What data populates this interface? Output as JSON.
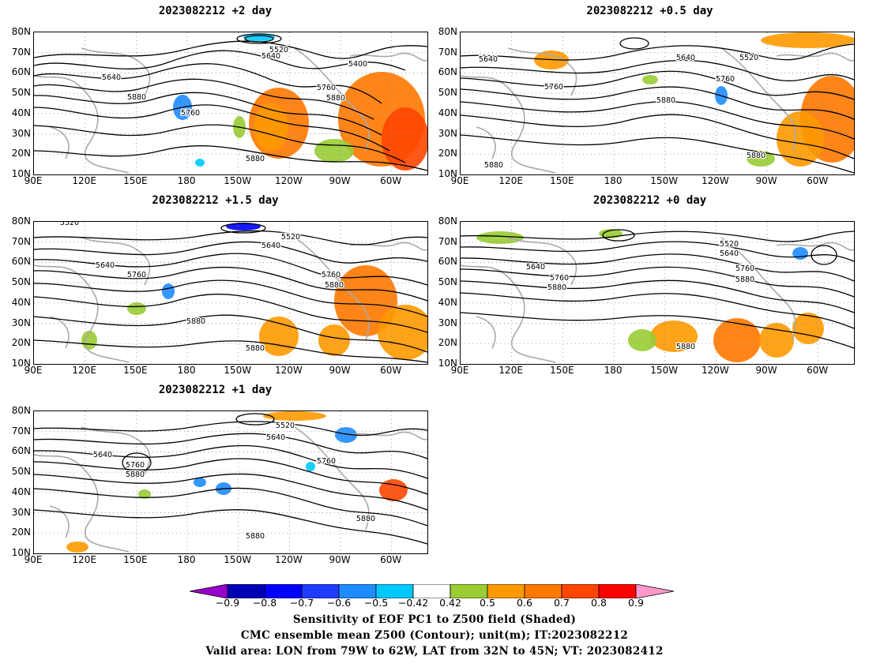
{
  "panels": [
    {
      "id": "p2",
      "title": "2023082212  +2 day"
    },
    {
      "id": "p05",
      "title": "2023082212  +0.5 day"
    },
    {
      "id": "p15",
      "title": "2023082212  +1.5 day"
    },
    {
      "id": "p0",
      "title": "2023082212  +0 day"
    },
    {
      "id": "p1",
      "title": "2023082212  +1 day"
    }
  ],
  "axes": {
    "lat_labels": [
      "80N",
      "70N",
      "60N",
      "50N",
      "40N",
      "30N",
      "20N",
      "10N"
    ],
    "lon_labels": [
      "90E",
      "120E",
      "150E",
      "180",
      "150W",
      "120W",
      "90W",
      "60W"
    ]
  },
  "contour_labels": {
    "p2": [
      "5520",
      "5640",
      "5400",
      "5640",
      "5760",
      "5880",
      "5880",
      "5760",
      "5880"
    ],
    "p05": [
      "5640",
      "5640",
      "5520",
      "5760",
      "5760",
      "5880",
      "5880",
      "5880"
    ],
    "p15": [
      "5520",
      "5520",
      "5640",
      "5640",
      "5760",
      "5760",
      "5880",
      "5880",
      "5880"
    ],
    "p0": [
      "5520",
      "5640",
      "5640",
      "5760",
      "5760",
      "5880",
      "5880",
      "5880"
    ],
    "p1": [
      "5520",
      "5640",
      "5640",
      "5760",
      "5880",
      "5760",
      "5880",
      "5880"
    ]
  },
  "colorbar": {
    "labels": [
      "−0.9",
      "−0.8",
      "−0.7",
      "−0.6",
      "−0.5",
      "−0.42",
      "0.42",
      "0.5",
      "0.6",
      "0.7",
      "0.8",
      "0.9"
    ],
    "colors": [
      "#9900cc",
      "#0000b4",
      "#0000ff",
      "#1e3cff",
      "#1e8cff",
      "#00c8ff",
      "#ffffff",
      "#99cc33",
      "#ff9900",
      "#ff7800",
      "#ff4600",
      "#ff0000",
      "#ff99cc"
    ]
  },
  "caption": {
    "line1": "Sensitivity of EOF PC1 to Z500 field (Shaded)",
    "line2": "CMC ensemble mean Z500 (Contour); unit(m); IT:2023082212",
    "line3": "Valid area: LON from 79W to 62W, LAT from 32N to 45N; VT: 2023082412"
  }
}
